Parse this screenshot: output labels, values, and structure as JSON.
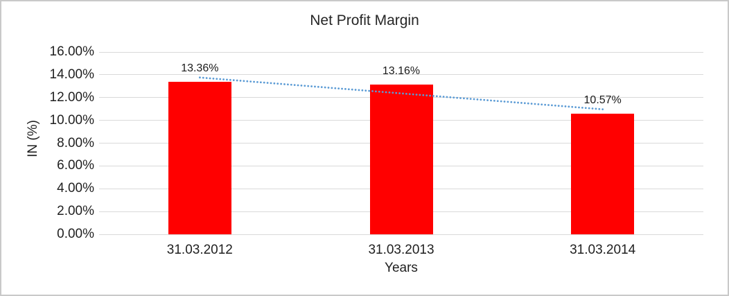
{
  "chart": {
    "colors": {
      "bar": "#FF0000",
      "trendline": "#5B9BD5",
      "gridline": "#D9D9D9",
      "frame": "#C9C9C9",
      "text": "#202020"
    }
  },
  "chart_data": {
    "type": "bar",
    "title": "Net Profit Margin",
    "xlabel": "Years",
    "ylabel": "IN (%)",
    "categories": [
      "31.03.2012",
      "31.03.2013",
      "31.03.2014"
    ],
    "series": [
      {
        "name": "Net Profit Margin",
        "values": [
          13.36,
          13.16,
          10.57
        ]
      }
    ],
    "data_labels": [
      "13.36%",
      "13.16%",
      "10.57%"
    ],
    "y_ticks": [
      "0.00%",
      "2.00%",
      "4.00%",
      "6.00%",
      "8.00%",
      "10.00%",
      "12.00%",
      "14.00%",
      "16.00%"
    ],
    "ylim": [
      0,
      16
    ],
    "grid": true,
    "legend_position": "none",
    "trendline": {
      "type": "linear",
      "style": "dotted",
      "color": "#5B9BD5",
      "endpoint_values": [
        13.76,
        10.97
      ]
    }
  }
}
